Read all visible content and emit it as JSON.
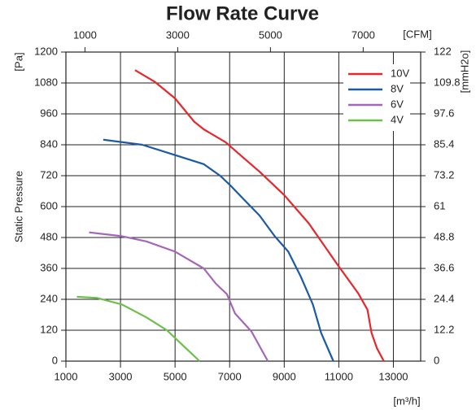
{
  "chart_data": {
    "type": "line",
    "title": "Flow Rate Curve",
    "y_label": "Static Pressure",
    "y_unit": "[Pa]",
    "y2_unit": "[mmH2o]",
    "x_unit": "[m³/h]",
    "x2_unit": "[CFM]",
    "xlim": [
      1000,
      14000
    ],
    "xticks": [
      1000,
      3000,
      5000,
      7000,
      9000,
      11000,
      13000
    ],
    "x2lim": [
      589,
      8240
    ],
    "x2ticks": [
      1000,
      3000,
      5000,
      7000
    ],
    "ylim": [
      0,
      1200
    ],
    "yticks": [
      0,
      120,
      240,
      360,
      480,
      600,
      720,
      840,
      960,
      1080,
      1200
    ],
    "y2lim": [
      0,
      122
    ],
    "y2ticks": [
      0,
      12.2,
      24.4,
      36.6,
      48.8,
      61,
      73.2,
      85.4,
      97.6,
      109.8,
      122
    ],
    "grid": true,
    "legend": "upper right",
    "series": [
      {
        "name": "10V",
        "color": "#e8262b",
        "x": [
          3530,
          4250,
          5000,
          5700,
          6050,
          6850,
          7500,
          8100,
          9000,
          9900,
          10950,
          11700,
          12050,
          12200,
          12400,
          12650
        ],
        "values": [
          1130,
          1085,
          1020,
          930,
          900,
          850,
          790,
          735,
          645,
          535,
          375,
          265,
          200,
          110,
          50,
          0
        ]
      },
      {
        "name": "8V",
        "color": "#1a5aa6",
        "x": [
          2370,
          3800,
          5000,
          6050,
          6650,
          7050,
          7500,
          8100,
          8650,
          9150,
          9600,
          10050,
          10350,
          10800
        ],
        "values": [
          860,
          840,
          800,
          765,
          720,
          680,
          630,
          565,
          485,
          425,
          330,
          220,
          110,
          0
        ]
      },
      {
        "name": "6V",
        "color": "#a466b8",
        "x": [
          1850,
          3050,
          3950,
          5000,
          6050,
          6500,
          6900,
          7200,
          7800,
          8400
        ],
        "values": [
          500,
          485,
          465,
          425,
          360,
          300,
          260,
          185,
          115,
          0
        ]
      },
      {
        "name": "4V",
        "color": "#6cc04a",
        "x": [
          1400,
          2150,
          3050,
          3950,
          4700,
          5150,
          5900
        ],
        "values": [
          250,
          245,
          220,
          170,
          120,
          75,
          0
        ]
      }
    ]
  }
}
